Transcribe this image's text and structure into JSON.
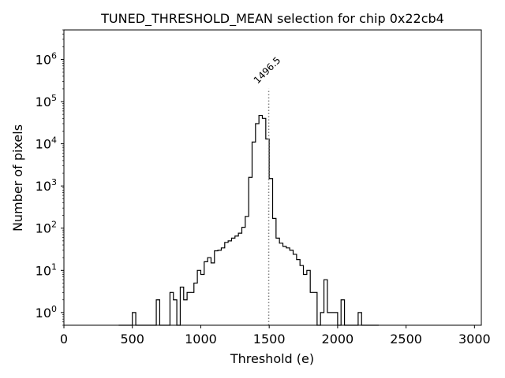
{
  "chart_data": {
    "type": "histogram",
    "title": "TUNED_THRESHOLD_MEAN selection for chip 0x22cb4",
    "xlabel": "Threshold (e)",
    "ylabel": "Number of pixels",
    "xlim": [
      0,
      3050
    ],
    "ylim": [
      0.5,
      5000000
    ],
    "yscale": "log",
    "xticks": [
      0,
      500,
      1000,
      1500,
      2000,
      2500,
      3000
    ],
    "xtick_labels": [
      "0",
      "500",
      "1000",
      "1500",
      "2000",
      "2500",
      "3000"
    ],
    "ytick_exponents": [
      0,
      1,
      2,
      3,
      4,
      5,
      6
    ],
    "ytick_base": "10",
    "bin_width": 25,
    "bins": [
      [
        400,
        0
      ],
      [
        500,
        1
      ],
      [
        525,
        0
      ],
      [
        675,
        2
      ],
      [
        700,
        0
      ],
      [
        775,
        3
      ],
      [
        800,
        2
      ],
      [
        825,
        0
      ],
      [
        850,
        4
      ],
      [
        875,
        2
      ],
      [
        900,
        3
      ],
      [
        950,
        5
      ],
      [
        975,
        10
      ],
      [
        1000,
        8
      ],
      [
        1025,
        16
      ],
      [
        1050,
        20
      ],
      [
        1075,
        15
      ],
      [
        1100,
        29
      ],
      [
        1125,
        30
      ],
      [
        1150,
        34
      ],
      [
        1175,
        46
      ],
      [
        1200,
        50
      ],
      [
        1225,
        58
      ],
      [
        1250,
        65
      ],
      [
        1275,
        76
      ],
      [
        1300,
        105
      ],
      [
        1325,
        190
      ],
      [
        1350,
        1600
      ],
      [
        1375,
        11000
      ],
      [
        1400,
        30000
      ],
      [
        1425,
        47000
      ],
      [
        1450,
        40000
      ],
      [
        1475,
        13000
      ],
      [
        1500,
        1500
      ],
      [
        1525,
        170
      ],
      [
        1550,
        58
      ],
      [
        1575,
        44
      ],
      [
        1600,
        37
      ],
      [
        1625,
        34
      ],
      [
        1650,
        30
      ],
      [
        1675,
        24
      ],
      [
        1700,
        18
      ],
      [
        1725,
        13
      ],
      [
        1750,
        8
      ],
      [
        1775,
        10
      ],
      [
        1800,
        3
      ],
      [
        1825,
        3
      ],
      [
        1850,
        0
      ],
      [
        1875,
        1
      ],
      [
        1900,
        6
      ],
      [
        1925,
        1
      ],
      [
        1950,
        1
      ],
      [
        1975,
        1
      ],
      [
        2000,
        0
      ],
      [
        2025,
        2
      ],
      [
        2050,
        0
      ],
      [
        2150,
        1
      ],
      [
        2175,
        0
      ],
      [
        2300,
        0
      ]
    ],
    "annotation": {
      "x": 1496.5,
      "label": "1496.5",
      "style": "dotted",
      "color": "#808080"
    },
    "colors": {
      "line": "#000000",
      "marker_line": "#808080",
      "background": "#ffffff"
    }
  }
}
